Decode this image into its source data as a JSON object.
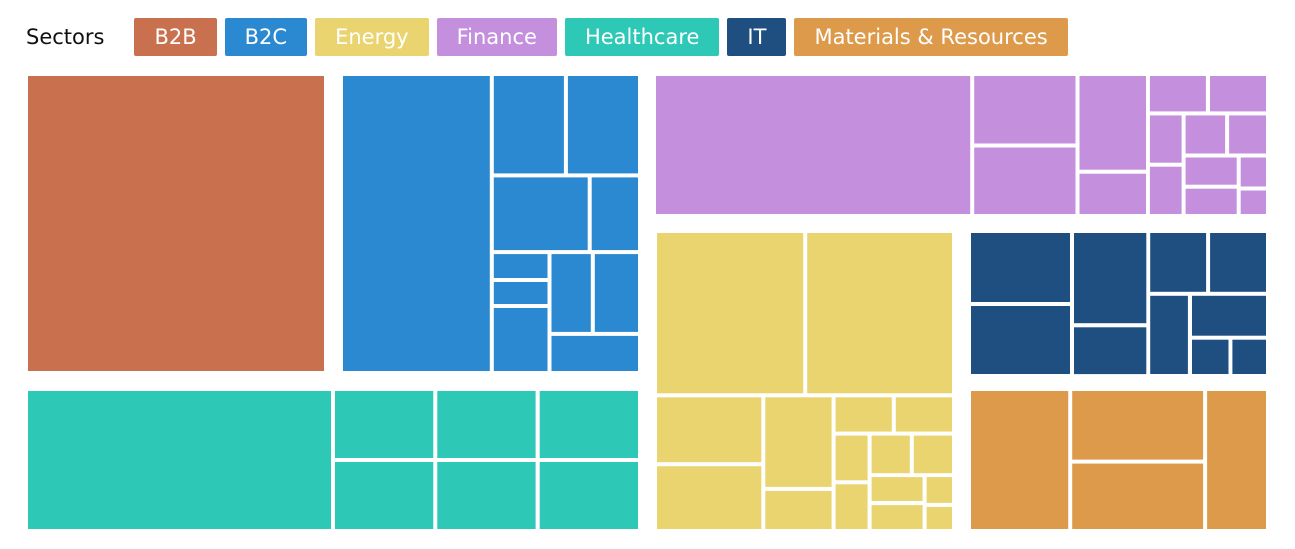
{
  "chart_data": {
    "type": "treemap",
    "legend_title": "Sectors",
    "series": [
      {
        "name": "B2B",
        "color": "#c9704f",
        "values": [
          90
        ]
      },
      {
        "name": "B2C",
        "color": "#2a89d0",
        "values": [
          42,
          7,
          7,
          7,
          3.6,
          1.5,
          1.4,
          3.6,
          3.3,
          3.6,
          3.3
        ]
      },
      {
        "name": "Energy",
        "color": "#ead46f",
        "values": [
          22.5,
          22.3,
          6.8,
          6.6,
          6,
          2.7,
          2.1,
          2.1,
          1.6,
          1.6,
          1.6,
          1.6,
          1.4,
          1.4,
          0.8,
          0.7
        ]
      },
      {
        "name": "Finance",
        "color": "#c48fdc",
        "values": [
          42,
          7,
          6.9,
          6.4,
          2.9,
          2.2,
          2.2,
          1.7,
          1.7,
          1.7,
          1.6,
          1.6,
          1.5,
          0.9,
          0.75
        ]
      },
      {
        "name": "Healthcare",
        "color": "#2ec8b6",
        "values": [
          42,
          7,
          7,
          7,
          7,
          7,
          7
        ]
      },
      {
        "name": "IT",
        "color": "#1f4f80",
        "values": [
          6.8,
          6.7,
          6.5,
          3.5,
          3.4,
          3.4,
          3.1,
          3.1,
          1.4,
          1.3
        ]
      },
      {
        "name": "Materials & Resources",
        "color": "#dd9a4b",
        "values": [
          13.5,
          9.2,
          8.8,
          8.4
        ]
      }
    ]
  }
}
